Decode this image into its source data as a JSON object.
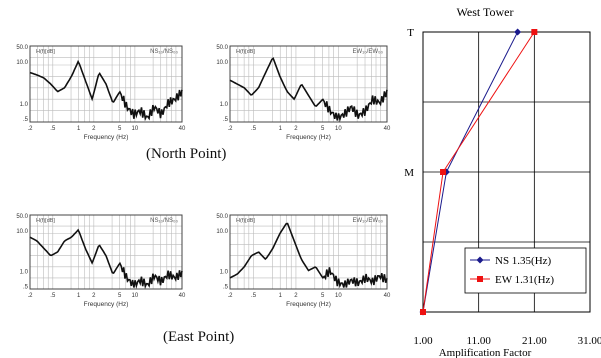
{
  "captions": {
    "north": "(North Point)",
    "east": "(East Point)"
  },
  "small_plots": [
    {
      "id": "np-ns",
      "ylabel_tr": "NS₁₀/NS₀₀",
      "ylabel_tl": "H(f)[dB]",
      "xlabel": "Frequency (Hz)",
      "yticks": [
        "50.0",
        "10.0",
        "1.0",
        ".5"
      ],
      "xticks": [
        ".2",
        ".5",
        "1",
        "2",
        "5",
        "10",
        "40"
      ]
    },
    {
      "id": "np-ew",
      "ylabel_tr": "EW₁₀/EW₀₀",
      "ylabel_tl": "H(f)[dB]",
      "xlabel": "Frequency (Hz)",
      "yticks": [
        "50.0",
        "10.0",
        "1.0",
        ".5"
      ],
      "xticks": [
        ".2",
        ".5",
        "1",
        "2",
        "5",
        "10",
        "40"
      ]
    },
    {
      "id": "ep-ns",
      "ylabel_tr": "NS₁₀/NS₀₀",
      "ylabel_tl": "H(f)[dB]",
      "xlabel": "Frequency (Hz)",
      "yticks": [
        "50.0",
        "10.0",
        "1.0",
        ".5"
      ],
      "xticks": [
        ".2",
        ".5",
        "1",
        "2",
        "5",
        "10",
        "40"
      ]
    },
    {
      "id": "ep-ew",
      "ylabel_tr": "EW₁₀/EW₀₀",
      "ylabel_tl": "H(f)[dB]",
      "xlabel": "Frequency (Hz)",
      "yticks": [
        "50.0",
        "10.0",
        "1.0",
        ".5"
      ],
      "xticks": [
        ".2",
        ".5",
        "1",
        "2",
        "5",
        "10",
        "40"
      ]
    }
  ],
  "chart_data": {
    "type": "line",
    "title": "West Tower",
    "xlabel": "Amplification Factor",
    "ylabel": "",
    "xlim": [
      1,
      31
    ],
    "xticks": [
      "1.00",
      "11.00",
      "21.00",
      "31.00"
    ],
    "y_categories": [
      "",
      "M",
      "T"
    ],
    "grid": true,
    "legend_position": "bottom-right",
    "series": [
      {
        "name": "NS 1.35(Hz)",
        "color": "#1a1a8c",
        "marker": "diamond",
        "points": [
          {
            "level": "",
            "x": 1.0
          },
          {
            "level": "M",
            "x": 5.2
          },
          {
            "level": "T",
            "x": 18.0
          }
        ]
      },
      {
        "name": "EW 1.31(Hz)",
        "color": "#ee1111",
        "marker": "square",
        "points": [
          {
            "level": "",
            "x": 1.0
          },
          {
            "level": "M",
            "x": 4.6
          },
          {
            "level": "T",
            "x": 21.0
          }
        ]
      }
    ]
  }
}
